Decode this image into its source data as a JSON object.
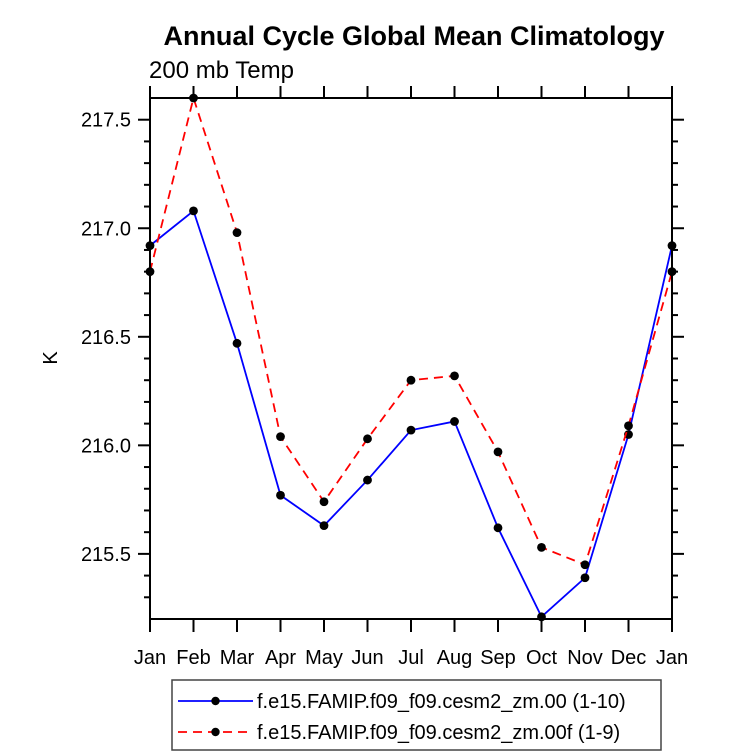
{
  "chart_data": {
    "type": "line",
    "title": "Annual Cycle Global Mean Climatology",
    "subtitle": "200 mb Temp",
    "xlabel": "",
    "ylabel": "K",
    "categories": [
      "Jan",
      "Feb",
      "Mar",
      "Apr",
      "May",
      "Jun",
      "Jul",
      "Aug",
      "Sep",
      "Oct",
      "Nov",
      "Dec",
      "Jan"
    ],
    "ylim": [
      215.2,
      217.6
    ],
    "yticks": [
      {
        "v": 215.5,
        "label": "215.5"
      },
      {
        "v": 216.0,
        "label": "216.0"
      },
      {
        "v": 216.5,
        "label": "216.5"
      },
      {
        "v": 217.0,
        "label": "217.0"
      },
      {
        "v": 217.5,
        "label": "217.5"
      }
    ],
    "ytick_minor_step": 0.1,
    "grid": false,
    "legend_position": "bottom",
    "series": [
      {
        "name": "f.e15.FAMIP.f09_f09.cesm2_zm.00 (1-10)",
        "color": "#0000ff",
        "style": "solid",
        "marker": "filled-circle",
        "marker_color": "#000000",
        "values": [
          216.92,
          217.08,
          216.47,
          215.77,
          215.63,
          215.84,
          216.07,
          216.11,
          215.62,
          215.21,
          215.39,
          216.05,
          216.92
        ]
      },
      {
        "name": "f.e15.FAMIP.f09_f09.cesm2_zm.00f (1-9)",
        "color": "#ff0000",
        "style": "dashed",
        "marker": "filled-circle",
        "marker_color": "#000000",
        "values": [
          216.8,
          217.6,
          216.98,
          216.04,
          215.74,
          216.03,
          216.3,
          216.32,
          215.97,
          215.53,
          215.45,
          216.09,
          216.8
        ]
      }
    ]
  }
}
